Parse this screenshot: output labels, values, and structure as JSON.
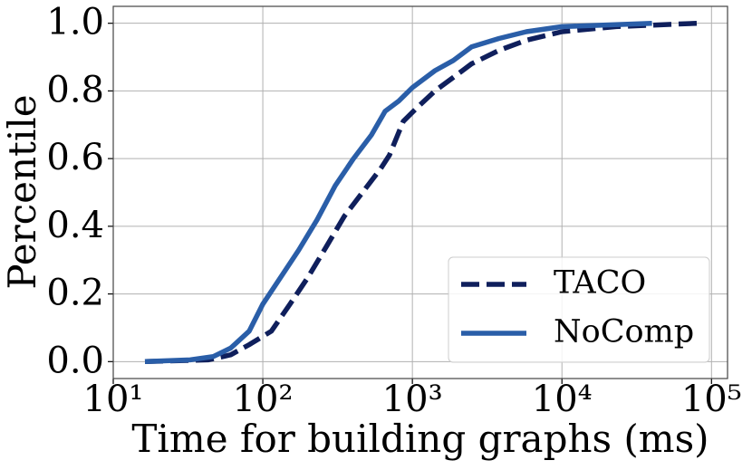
{
  "chart_data": {
    "type": "line",
    "x_label": "Time for building graphs (ms)",
    "y_label": "Percentile",
    "x_log": true,
    "grid": true,
    "legend_position": "lower right",
    "xlim": [
      10,
      128000
    ],
    "xticks": [
      {
        "value": 10,
        "label": "10¹"
      },
      {
        "value": 100,
        "label": "10²"
      },
      {
        "value": 1000,
        "label": "10³"
      },
      {
        "value": 10000,
        "label": "10⁴"
      },
      {
        "value": 100000,
        "label": "10⁵"
      }
    ],
    "ylim": [
      -0.05,
      1.05
    ],
    "yticks": [
      {
        "value": 0,
        "label": "0.0"
      },
      0.2,
      0.4,
      0.6,
      0.8,
      {
        "value": 1,
        "label": "1.0"
      }
    ],
    "series": [
      {
        "name": "TACO",
        "color": "#0f1f5c",
        "style": "dashed",
        "x": [
          16.3,
          43,
          61,
          81,
          114,
          152,
          201,
          266,
          351,
          464,
          613,
          702,
          869,
          1071,
          1417,
          1876,
          2483,
          3793,
          5789,
          10000,
          23000,
          80000
        ],
        "values": [
          0,
          0.005,
          0.02,
          0.05,
          0.09,
          0.17,
          0.25,
          0.34,
          0.43,
          0.5,
          0.57,
          0.61,
          0.71,
          0.75,
          0.8,
          0.84,
          0.88,
          0.92,
          0.95,
          0.975,
          0.99,
          1.0
        ]
      },
      {
        "name": "NoComp",
        "color": "#2a5ea8",
        "style": "solid",
        "x": [
          16.3,
          32.7,
          46.7,
          61,
          81,
          100,
          132,
          174,
          231,
          305,
          404,
          533,
          658,
          811,
          1000,
          1417,
          1876,
          2483,
          3793,
          5789,
          10000,
          40000
        ],
        "values": [
          0,
          0.005,
          0.015,
          0.04,
          0.09,
          0.17,
          0.25,
          0.33,
          0.42,
          0.52,
          0.6,
          0.67,
          0.74,
          0.77,
          0.81,
          0.86,
          0.89,
          0.93,
          0.955,
          0.975,
          0.99,
          1.0
        ]
      }
    ]
  }
}
